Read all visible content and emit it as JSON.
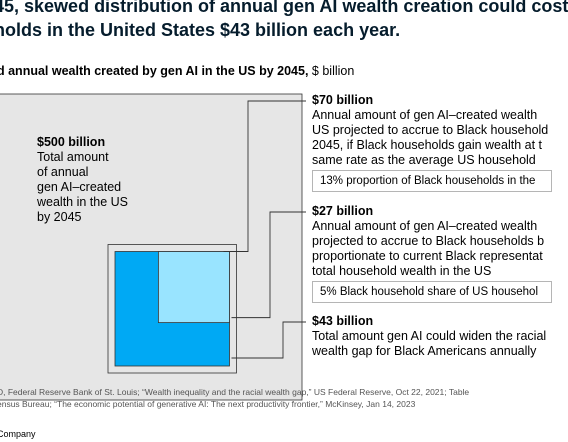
{
  "title_lines": [
    "45, skewed distribution of annual gen AI wealth creation could cost",
    "holds in the United States $43 billion each year."
  ],
  "subtitle": {
    "bold": "d annual wealth created by gen AI in the US by 2045,",
    "unit": " $ billion"
  },
  "colors": {
    "total_fill": "#e6e6e6",
    "proportional_fill": "#00a9f4",
    "representative_fill": "#99e4ff",
    "outline": "#333333",
    "connector": "#333333"
  },
  "chart_data": {
    "type": "area",
    "unit": "$ billion",
    "items": [
      {
        "key": "total",
        "value": 500,
        "value_label": "$500 billion",
        "lines": [
          "Total amount",
          "of annual",
          "gen AI–created",
          "wealth in the US",
          "by 2045"
        ]
      },
      {
        "key": "proportional",
        "value": 70,
        "value_label": "$70 billion",
        "lines": [
          "Annual amount of gen AI–created wealth",
          "US projected to accrue to Black household",
          "2045, if Black households gain wealth at t",
          "same rate as the average US household"
        ],
        "tag": "13% proportion of Black households in the"
      },
      {
        "key": "representative",
        "value": 27,
        "value_label": "$27 billion",
        "lines": [
          "Annual amount of gen AI–created wealth",
          "projected to accrue to Black households b",
          "proportionate to current Black representat",
          "total household wealth in the US"
        ],
        "tag": "5% Black household share of US househol"
      },
      {
        "key": "gap",
        "value": 43,
        "value_label": "$43 billion",
        "lines": [
          "Total amount gen AI could widen the racial",
          "wealth gap for Black Americans annually"
        ]
      }
    ]
  },
  "source_lines": [
    "D, Federal Reserve Bank of St. Louis; “Wealth inequality and the racial wealth gap,” US Federal Reserve, Oct 22, 2021; Table",
    "ensus Bureau; “The economic potential of generative AI: The next productivity frontier,” McKinsey, Jan 14, 2023"
  ],
  "footer": "Company"
}
